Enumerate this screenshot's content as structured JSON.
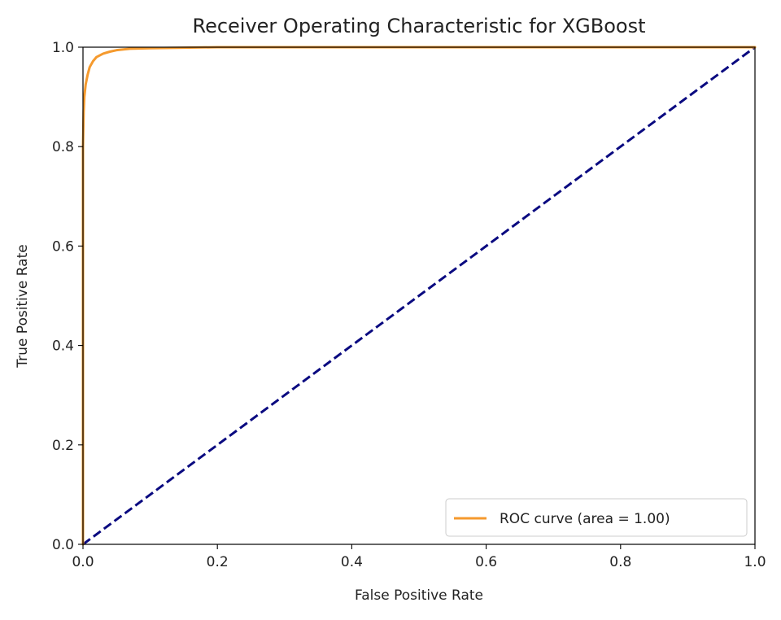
{
  "chart_data": {
    "type": "line",
    "title": "Receiver Operating Characteristic for XGBoost",
    "xlabel": "False Positive Rate",
    "ylabel": "True Positive Rate",
    "xlim": [
      0.0,
      1.0
    ],
    "ylim": [
      0.0,
      1.0
    ],
    "x_ticks": [
      "0.0",
      "0.2",
      "0.4",
      "0.6",
      "0.8",
      "1.0"
    ],
    "y_ticks": [
      "0.0",
      "0.2",
      "0.4",
      "0.6",
      "0.8",
      "1.0"
    ],
    "grid": false,
    "legend_position": "lower-right",
    "series": [
      {
        "name": "ROC curve (area = 1.00)",
        "color": "#f59a2e",
        "line_style": "solid",
        "in_legend": true,
        "x": [
          0.0,
          0.0,
          0.001,
          0.002,
          0.004,
          0.007,
          0.01,
          0.015,
          0.02,
          0.03,
          0.04,
          0.05,
          0.07,
          0.1,
          0.15,
          0.2,
          0.3,
          0.5,
          0.7,
          1.0
        ],
        "y": [
          0.0,
          0.8,
          0.87,
          0.9,
          0.925,
          0.945,
          0.96,
          0.972,
          0.98,
          0.987,
          0.991,
          0.994,
          0.997,
          0.998,
          0.999,
          1.0,
          1.0,
          1.0,
          1.0,
          1.0
        ]
      },
      {
        "name": "",
        "color": "#0a0a80",
        "line_style": "dashed",
        "in_legend": false,
        "x": [
          0.0,
          1.0
        ],
        "y": [
          0.0,
          1.0
        ]
      }
    ]
  }
}
